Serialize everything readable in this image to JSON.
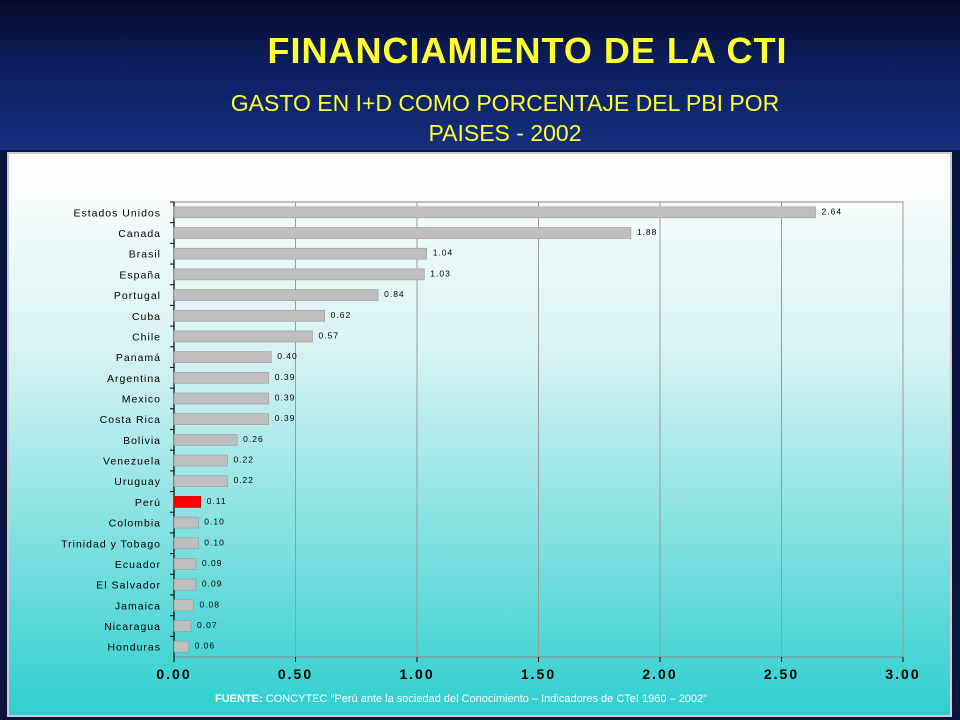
{
  "header": {
    "title": "FINANCIAMIENTO DE LA CTI",
    "subtitle_line1": "GASTO EN I+D COMO PORCENTAJE DEL PBI POR",
    "subtitle_line2": "PAISES  - 2002"
  },
  "footer": {
    "source_label": "FUENTE:",
    "source_text": " CONCYTEC  \"Perú ante la sociedad del Conocimiento – Indicadores de CTeI  1960 – 2002\""
  },
  "colors": {
    "bar": "#bfbfbf",
    "highlight": "#ff0000",
    "title": "#ffff33"
  },
  "chart_data": {
    "type": "bar",
    "orientation": "horizontal",
    "categories": [
      "Estados Unidos",
      "Canada",
      "Brasil",
      "España",
      "Portugal",
      "Cuba",
      "Chile",
      "Panamá",
      "Argentina",
      "Mexico",
      "Costa Rica",
      "Bolivia",
      "Venezuela",
      "Uruguay",
      "Perú",
      "Colombia",
      "Trinidad y Tobago",
      "Ecuador",
      "El Salvador",
      "Jamaica",
      "Nicaragua",
      "Honduras"
    ],
    "values": [
      2.64,
      1.88,
      1.04,
      1.03,
      0.84,
      0.62,
      0.57,
      0.4,
      0.39,
      0.39,
      0.39,
      0.26,
      0.22,
      0.22,
      0.11,
      0.1,
      0.1,
      0.09,
      0.09,
      0.08,
      0.07,
      0.06
    ],
    "value_labels": [
      "2.64",
      "1.88",
      "1.04",
      "1.03",
      "0.84",
      "0.62",
      "0.57",
      "0.40",
      "0.39",
      "0.39",
      "0.39",
      "0.26",
      "0.22",
      "0.22",
      "0.11",
      "0.10",
      "0.10",
      "0.09",
      "0.09",
      "0.08",
      "0.07",
      "0.06"
    ],
    "highlight": "Perú",
    "xlim": [
      0,
      3
    ],
    "xticks": [
      0,
      0.5,
      1,
      1.5,
      2,
      2.5,
      3
    ],
    "xtick_labels": [
      "0.00",
      "0.50",
      "1.00",
      "1.50",
      "2.00",
      "2.50",
      "3.00"
    ],
    "grid": "vertical"
  }
}
